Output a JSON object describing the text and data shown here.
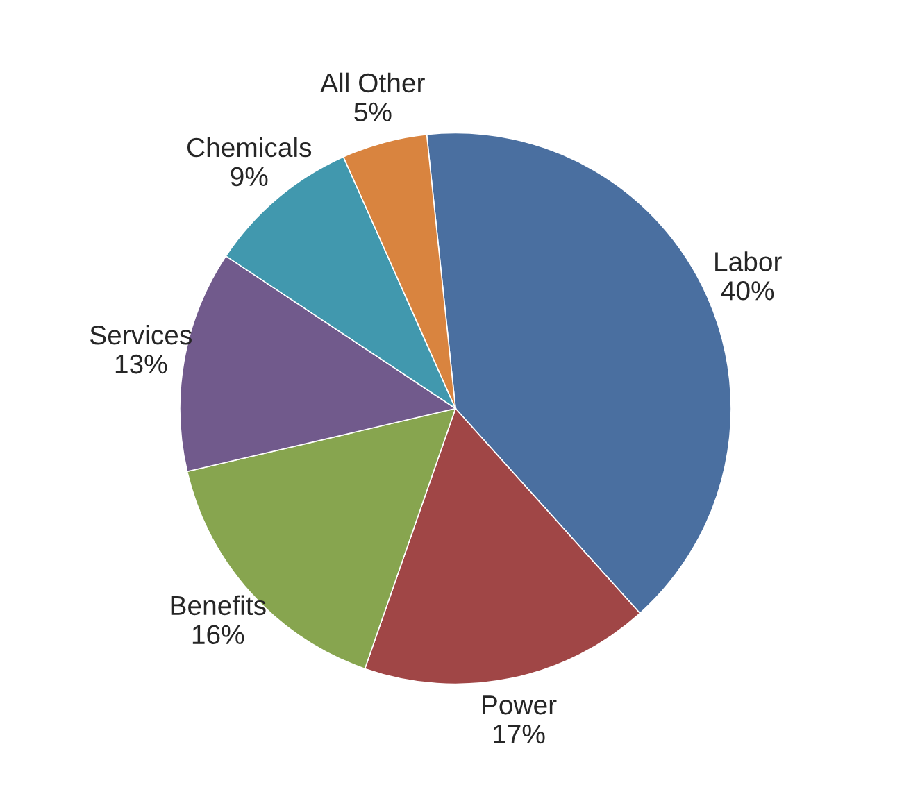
{
  "chart_data": {
    "type": "pie",
    "categories": [
      "Labor",
      "Power",
      "Benefits",
      "Services",
      "Chemicals",
      "All Other"
    ],
    "values": [
      40,
      17,
      16,
      13,
      9,
      5
    ],
    "value_labels": [
      "40%",
      "17%",
      "16%",
      "13%",
      "9%",
      "5%"
    ],
    "colors": [
      "#4a6fa0",
      "#a04646",
      "#87a54f",
      "#715a8c",
      "#4198ae",
      "#d9843f"
    ]
  }
}
